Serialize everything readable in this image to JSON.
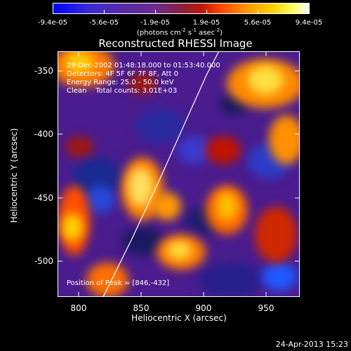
{
  "colorbar": {
    "tick_labels": [
      "-9.4e-05",
      "-5.6e-05",
      "-1.9e-05",
      "1.9e-05",
      "5.6e-05",
      "9.4e-05"
    ],
    "units_prefix": "(photons cm",
    "units_exp1": "-2",
    "units_mid": " s",
    "units_exp2": "-1",
    "units_mid2": " asec",
    "units_exp3": "-2",
    "units_suffix": ")"
  },
  "title": "Reconstructed RHESSI Image",
  "info": {
    "line1": "29-Dec-2002 01:48:18.000 to 01:53:40.000",
    "line2": "Detectors: 4F 5F 6F 7F 8F, Att 0",
    "line3": "Energy Range: 25.0 - 50.0 keV",
    "line4": "Clean    Total counts: 3.01E+03"
  },
  "peak": "Position of Peak = [846,-432]",
  "axes": {
    "xlabel": "Heliocentric X (arcsec)",
    "ylabel": "Heliocentric Y (arcsec)",
    "xticks": [
      "800",
      "850",
      "900",
      "950"
    ],
    "yticks": [
      "-350",
      "-400",
      "-450",
      "-500"
    ]
  },
  "timestamp": "24-Apr-2013 15:23",
  "colors": {
    "background": "#000000",
    "map_base": "#4a1c8e",
    "limb_line": "#ffffff"
  }
}
